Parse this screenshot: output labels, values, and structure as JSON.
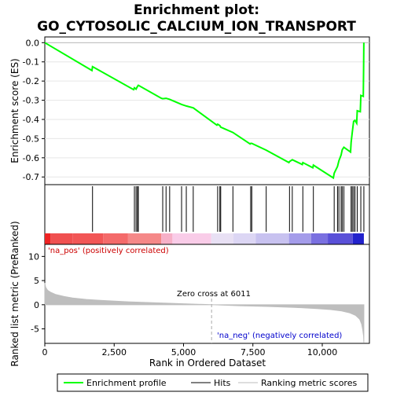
{
  "title": "Enrichment plot:",
  "subtitle": "GO_CYTOSOLIC_CALCIUM_ION_TRANSPORT",
  "ylabel_top": "Enrichment score (ES)",
  "ylabel_bottom": "Ranked list metric (PreRanked)",
  "xlabel": "Rank in Ordered Dataset",
  "pos_label": "'na_pos' (positively correlated)",
  "neg_label": "'na_neg' (negatively correlated)",
  "zero_cross_label": "Zero cross at 6011",
  "legend": {
    "enrichment_profile": "Enrichment profile",
    "hits": "Hits",
    "ranking_metric": "Ranking metric scores"
  },
  "colors": {
    "es_line": "#00ff00",
    "hits": "#000000",
    "metric_fill": "#bebebe",
    "pos_label": "#cc0000",
    "neg_label": "#0000cc"
  },
  "chart_data": {
    "type": "line",
    "x_range": [
      0,
      11700
    ],
    "es_ylim": [
      -0.74,
      0.03
    ],
    "es_yticks": [
      0.0,
      -0.1,
      -0.2,
      -0.3,
      -0.4,
      -0.5,
      -0.6,
      -0.7
    ],
    "es_ytick_labels": [
      "0.0",
      "-0.1",
      "-0.2",
      "-0.3",
      "-0.4",
      "-0.5",
      "-0.6",
      "-0.7"
    ],
    "metric_ylim": [
      -8,
      12.5
    ],
    "metric_yticks": [
      10,
      5,
      0,
      -5
    ],
    "metric_ytick_labels": [
      "10",
      "5",
      "0",
      "-5"
    ],
    "xticks": [
      0,
      2500,
      5000,
      7500,
      10000
    ],
    "xtick_labels": [
      "0",
      "2,500",
      "5,000",
      "7,500",
      "10,000"
    ],
    "zero_cross": 6011,
    "n_genes": 11500,
    "hits": [
      1720,
      3230,
      3290,
      3340,
      3370,
      4250,
      4370,
      4500,
      4930,
      5100,
      5350,
      6230,
      6310,
      6340,
      6780,
      7420,
      7460,
      7980,
      8820,
      8920,
      9300,
      9680,
      10430,
      10550,
      10600,
      10680,
      10720,
      10780,
      11040,
      11080,
      11130,
      11180,
      11260,
      11390,
      11500
    ],
    "es_profile": [
      [
        0,
        0.0
      ],
      [
        1700,
        -0.145
      ],
      [
        1720,
        -0.125
      ],
      [
        3200,
        -0.245
      ],
      [
        3230,
        -0.235
      ],
      [
        3290,
        -0.242
      ],
      [
        3340,
        -0.228
      ],
      [
        3370,
        -0.222
      ],
      [
        4200,
        -0.29
      ],
      [
        4250,
        -0.292
      ],
      [
        4370,
        -0.29
      ],
      [
        4500,
        -0.295
      ],
      [
        4930,
        -0.322
      ],
      [
        5100,
        -0.33
      ],
      [
        5350,
        -0.34
      ],
      [
        6200,
        -0.43
      ],
      [
        6230,
        -0.425
      ],
      [
        6310,
        -0.432
      ],
      [
        6340,
        -0.44
      ],
      [
        6780,
        -0.468
      ],
      [
        7400,
        -0.528
      ],
      [
        7420,
        -0.525
      ],
      [
        7460,
        -0.525
      ],
      [
        7980,
        -0.56
      ],
      [
        8800,
        -0.625
      ],
      [
        8820,
        -0.62
      ],
      [
        8920,
        -0.61
      ],
      [
        9280,
        -0.635
      ],
      [
        9300,
        -0.625
      ],
      [
        9660,
        -0.652
      ],
      [
        9680,
        -0.638
      ],
      [
        10400,
        -0.705
      ],
      [
        10430,
        -0.68
      ],
      [
        10550,
        -0.645
      ],
      [
        10600,
        -0.615
      ],
      [
        10680,
        -0.585
      ],
      [
        10720,
        -0.558
      ],
      [
        10780,
        -0.545
      ],
      [
        11020,
        -0.57
      ],
      [
        11040,
        -0.52
      ],
      [
        11080,
        -0.47
      ],
      [
        11130,
        -0.41
      ],
      [
        11180,
        -0.405
      ],
      [
        11240,
        -0.42
      ],
      [
        11260,
        -0.355
      ],
      [
        11370,
        -0.36
      ],
      [
        11390,
        -0.275
      ],
      [
        11480,
        -0.28
      ],
      [
        11490,
        -0.14
      ],
      [
        11500,
        0.0
      ]
    ],
    "metric_profile": [
      [
        0,
        4.5
      ],
      [
        30,
        3.6
      ],
      [
        100,
        3.0
      ],
      [
        200,
        2.6
      ],
      [
        400,
        2.1
      ],
      [
        700,
        1.7
      ],
      [
        1000,
        1.4
      ],
      [
        1500,
        1.1
      ],
      [
        2000,
        0.9
      ],
      [
        3000,
        0.6
      ],
      [
        4000,
        0.4
      ],
      [
        5000,
        0.2
      ],
      [
        6011,
        0.0
      ],
      [
        7000,
        -0.2
      ],
      [
        8000,
        -0.35
      ],
      [
        9000,
        -0.55
      ],
      [
        9800,
        -0.8
      ],
      [
        10300,
        -1.0
      ],
      [
        10700,
        -1.3
      ],
      [
        11000,
        -1.7
      ],
      [
        11200,
        -2.2
      ],
      [
        11350,
        -3.0
      ],
      [
        11420,
        -4.0
      ],
      [
        11460,
        -5.2
      ],
      [
        11490,
        -6.5
      ],
      [
        11500,
        -7.8
      ]
    ],
    "rank_bar_colors": [
      [
        0,
        0.2,
        "#ee2222"
      ],
      [
        0.2,
        1,
        "#f05050"
      ],
      [
        1,
        2.1,
        "#f25656"
      ],
      [
        2.1,
        3.0,
        "#f46a6a"
      ],
      [
        3.0,
        4.2,
        "#f58888"
      ],
      [
        4.2,
        4.6,
        "#f7b0c8"
      ],
      [
        4.6,
        6.0,
        "#f9cce8"
      ],
      [
        6.0,
        6.8,
        "#e8e0f4"
      ],
      [
        6.8,
        7.6,
        "#dcd6f4"
      ],
      [
        7.6,
        8.8,
        "#c8c2f0"
      ],
      [
        8.8,
        9.6,
        "#a49cea"
      ],
      [
        9.6,
        10.2,
        "#7a70e0"
      ],
      [
        10.2,
        11.1,
        "#5a50d8"
      ],
      [
        11.1,
        11.5,
        "#2222cc"
      ]
    ]
  }
}
